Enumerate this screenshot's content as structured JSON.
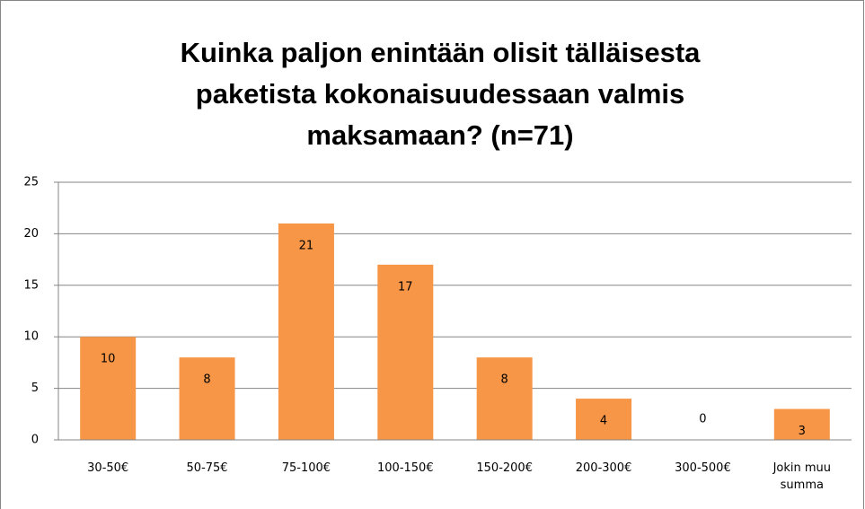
{
  "chart_data": {
    "type": "bar",
    "title": "Kuinka paljon enintään olisit tälläisesta paketista kokonaisuudessaan valmis maksamaan? (n=71)",
    "categories": [
      "30-50€",
      "50-75€",
      "75-100€",
      "100-150€",
      "150-200€",
      "200-300€",
      "300-500€",
      "Jokin muu summa"
    ],
    "values": [
      10,
      8,
      21,
      17,
      8,
      4,
      0,
      3
    ],
    "color": "#f79646",
    "ylim": [
      0,
      25
    ],
    "yticks": [
      0,
      5,
      10,
      15,
      20,
      25
    ],
    "grid": true
  }
}
